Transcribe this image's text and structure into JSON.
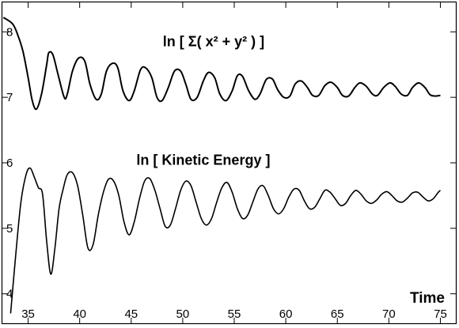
{
  "chart_data": {
    "type": "line",
    "title": "",
    "xlabel": "Time",
    "ylabel": "",
    "xlim": [
      32.5,
      76.5
    ],
    "ylim": [
      3.55,
      8.45
    ],
    "x_ticks": [
      35,
      40,
      45,
      50,
      55,
      60,
      65,
      70,
      75
    ],
    "y_ticks": [
      4,
      5,
      6,
      7,
      8
    ],
    "grid": false,
    "annotations": [
      {
        "text": "ln [ Σ( x² + y² ) ]",
        "x": 53,
        "y": 7.78,
        "series": "upper"
      },
      {
        "text": "ln [ Kinetic Energy ]",
        "x": 52,
        "y": 5.97,
        "series": "lower"
      }
    ],
    "series": [
      {
        "x": [
          32.6,
          33.5,
          34.0,
          34.5,
          35.0,
          35.4,
          35.8,
          36.3,
          36.8,
          37.0,
          37.4,
          37.9,
          38.5,
          38.8,
          39.3,
          39.9,
          40.5,
          41.0,
          41.6,
          42.1,
          42.6,
          43.2,
          43.7,
          44.2,
          44.8,
          45.3,
          45.9,
          46.4,
          47.0,
          47.5,
          48.0,
          48.6,
          49.2,
          49.8,
          50.3,
          50.8,
          51.4,
          52.0,
          52.5,
          53.1,
          53.6,
          54.2,
          54.8,
          55.3,
          55.8,
          56.4,
          57.0,
          57.5,
          58.1,
          58.7,
          59.2,
          59.8,
          60.4,
          60.9,
          61.5,
          62.1,
          62.6,
          63.2,
          63.8,
          64.4,
          65.0,
          65.5,
          66.1,
          66.7,
          67.2,
          67.8,
          68.4,
          68.9,
          69.5,
          70.1,
          70.6,
          71.2,
          71.8,
          72.3,
          72.9,
          73.5,
          74.0,
          74.5,
          75.0
        ],
        "values": [
          8.22,
          8.12,
          7.95,
          7.7,
          7.3,
          6.95,
          6.82,
          7.05,
          7.5,
          7.68,
          7.65,
          7.35,
          7.0,
          7.05,
          7.4,
          7.6,
          7.55,
          7.2,
          6.97,
          7.05,
          7.4,
          7.52,
          7.45,
          7.1,
          6.95,
          7.1,
          7.42,
          7.45,
          7.3,
          7.0,
          6.95,
          7.15,
          7.4,
          7.4,
          7.2,
          6.97,
          7.0,
          7.25,
          7.38,
          7.3,
          7.05,
          6.95,
          7.1,
          7.33,
          7.32,
          7.1,
          6.97,
          7.05,
          7.27,
          7.28,
          7.12,
          7.0,
          7.02,
          7.2,
          7.25,
          7.15,
          7.03,
          7.03,
          7.18,
          7.23,
          7.15,
          7.03,
          7.02,
          7.15,
          7.22,
          7.17,
          7.05,
          7.03,
          7.15,
          7.22,
          7.17,
          7.05,
          7.03,
          7.15,
          7.22,
          7.15,
          7.04,
          7.02,
          7.03
        ]
      },
      {
        "x": [
          33.3,
          33.8,
          34.3,
          34.8,
          35.2,
          35.6,
          36.0,
          36.4,
          36.8,
          37.2,
          37.6,
          38.0,
          38.4,
          38.8,
          39.3,
          39.8,
          40.3,
          40.8,
          41.3,
          41.8,
          42.3,
          42.8,
          43.3,
          43.8,
          44.3,
          44.8,
          45.3,
          45.8,
          46.3,
          46.8,
          47.3,
          47.8,
          48.3,
          48.8,
          49.3,
          49.8,
          50.3,
          50.8,
          51.3,
          51.8,
          52.3,
          52.8,
          53.3,
          53.8,
          54.3,
          54.8,
          55.3,
          55.8,
          56.3,
          56.8,
          57.3,
          57.8,
          58.3,
          58.8,
          59.3,
          59.8,
          60.3,
          60.8,
          61.3,
          61.8,
          62.3,
          62.8,
          63.3,
          63.8,
          64.3,
          64.8,
          65.3,
          65.8,
          66.3,
          66.8,
          67.3,
          67.8,
          68.3,
          68.8,
          69.3,
          69.8,
          70.3,
          70.8,
          71.3,
          71.8,
          72.3,
          72.8,
          73.3,
          73.8,
          74.3,
          74.8,
          75.0
        ],
        "values": [
          3.7,
          4.6,
          5.4,
          5.82,
          5.92,
          5.78,
          5.62,
          5.52,
          4.8,
          4.3,
          4.7,
          5.3,
          5.6,
          5.82,
          5.85,
          5.65,
          5.2,
          4.7,
          4.75,
          5.2,
          5.55,
          5.75,
          5.72,
          5.5,
          5.1,
          4.9,
          5.1,
          5.45,
          5.72,
          5.76,
          5.58,
          5.3,
          5.03,
          5.05,
          5.3,
          5.58,
          5.72,
          5.65,
          5.4,
          5.15,
          5.05,
          5.15,
          5.4,
          5.62,
          5.7,
          5.55,
          5.3,
          5.15,
          5.2,
          5.4,
          5.6,
          5.65,
          5.5,
          5.3,
          5.22,
          5.3,
          5.48,
          5.6,
          5.58,
          5.42,
          5.3,
          5.32,
          5.45,
          5.58,
          5.55,
          5.45,
          5.35,
          5.38,
          5.5,
          5.58,
          5.52,
          5.42,
          5.38,
          5.43,
          5.52,
          5.56,
          5.5,
          5.42,
          5.4,
          5.46,
          5.54,
          5.55,
          5.48,
          5.42,
          5.45,
          5.55,
          5.58
        ]
      }
    ]
  }
}
